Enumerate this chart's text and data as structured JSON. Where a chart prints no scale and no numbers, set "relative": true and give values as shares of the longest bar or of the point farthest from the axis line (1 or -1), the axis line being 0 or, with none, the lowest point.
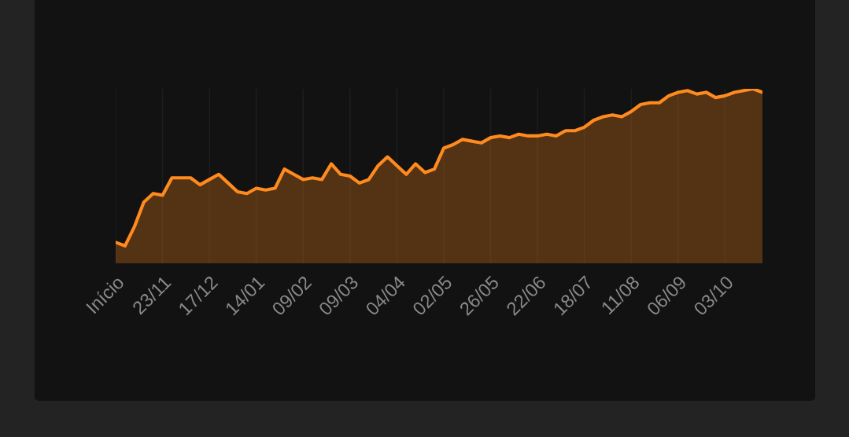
{
  "chart_data": {
    "type": "area",
    "relative": true,
    "grid": "x",
    "tick_labels": "x",
    "categories": [
      "Início",
      null,
      null,
      null,
      null,
      "23/11",
      null,
      null,
      null,
      null,
      "17/12",
      null,
      null,
      null,
      null,
      "14/01",
      null,
      null,
      null,
      null,
      "09/02",
      null,
      null,
      null,
      null,
      "09/03",
      null,
      null,
      null,
      null,
      "04/04",
      null,
      null,
      null,
      null,
      "02/05",
      null,
      null,
      null,
      null,
      "26/05",
      null,
      null,
      null,
      null,
      "22/06",
      null,
      null,
      null,
      null,
      "18/07",
      null,
      null,
      null,
      null,
      "11/08",
      null,
      null,
      null,
      null,
      "06/09",
      null,
      null,
      null,
      null,
      "03/10",
      null,
      null,
      null,
      null
    ],
    "series": [
      {
        "color": "#ff8a1e",
        "values": [
          0.12,
          0.1,
          0.21,
          0.35,
          0.4,
          0.39,
          0.49,
          0.49,
          0.49,
          0.45,
          0.48,
          0.51,
          0.46,
          0.41,
          0.4,
          0.43,
          0.42,
          0.43,
          0.54,
          0.51,
          0.48,
          0.49,
          0.48,
          0.57,
          0.51,
          0.5,
          0.46,
          0.48,
          0.56,
          0.61,
          0.56,
          0.51,
          0.57,
          0.52,
          0.54,
          0.66,
          0.68,
          0.71,
          0.7,
          0.69,
          0.72,
          0.73,
          0.72,
          0.74,
          0.73,
          0.73,
          0.74,
          0.73,
          0.76,
          0.76,
          0.78,
          0.82,
          0.84,
          0.85,
          0.84,
          0.87,
          0.91,
          0.92,
          0.92,
          0.96,
          0.98,
          0.99,
          0.97,
          0.98,
          0.95,
          0.96,
          0.98,
          0.99,
          1.0,
          0.98
        ]
      }
    ]
  }
}
